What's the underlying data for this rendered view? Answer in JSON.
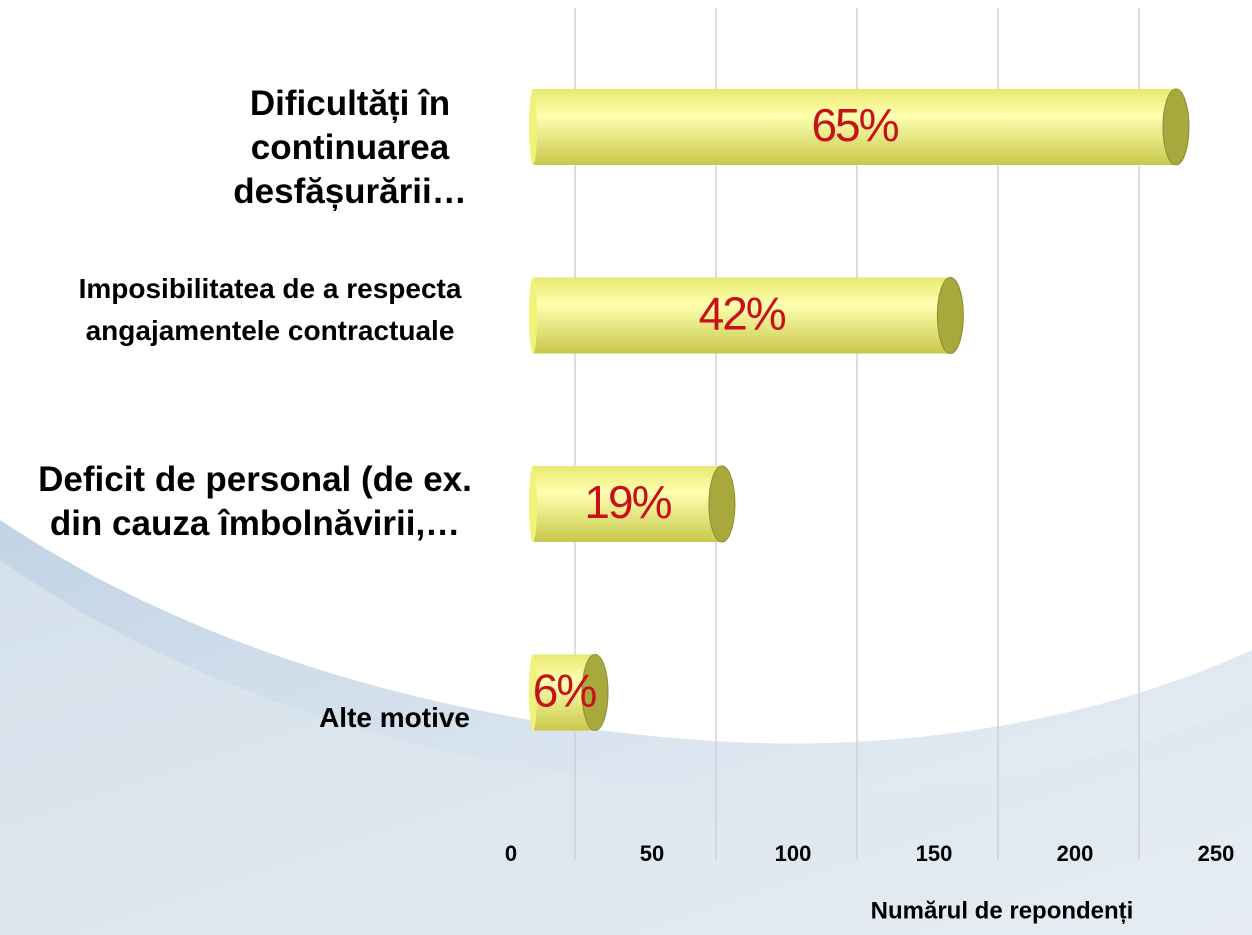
{
  "chart_data": {
    "type": "bar",
    "orientation": "horizontal",
    "categories": [
      "Dificultăți în continuarea desfășurării…",
      "Imposibilitatea de a respecta angajamentele contractuale",
      "Deficit de personal (de ex. din cauza îmbolnăvirii,…",
      "Alte motive"
    ],
    "values": [
      228,
      148,
      67,
      22
    ],
    "data_labels": [
      "65%",
      "42%",
      "19%",
      "6%"
    ],
    "color": "#f2f27a",
    "xlabel": "Numărul de repondenți",
    "xlim": [
      0,
      250
    ],
    "xticks": [
      0,
      50,
      100,
      150,
      200,
      250
    ],
    "grid": true
  }
}
